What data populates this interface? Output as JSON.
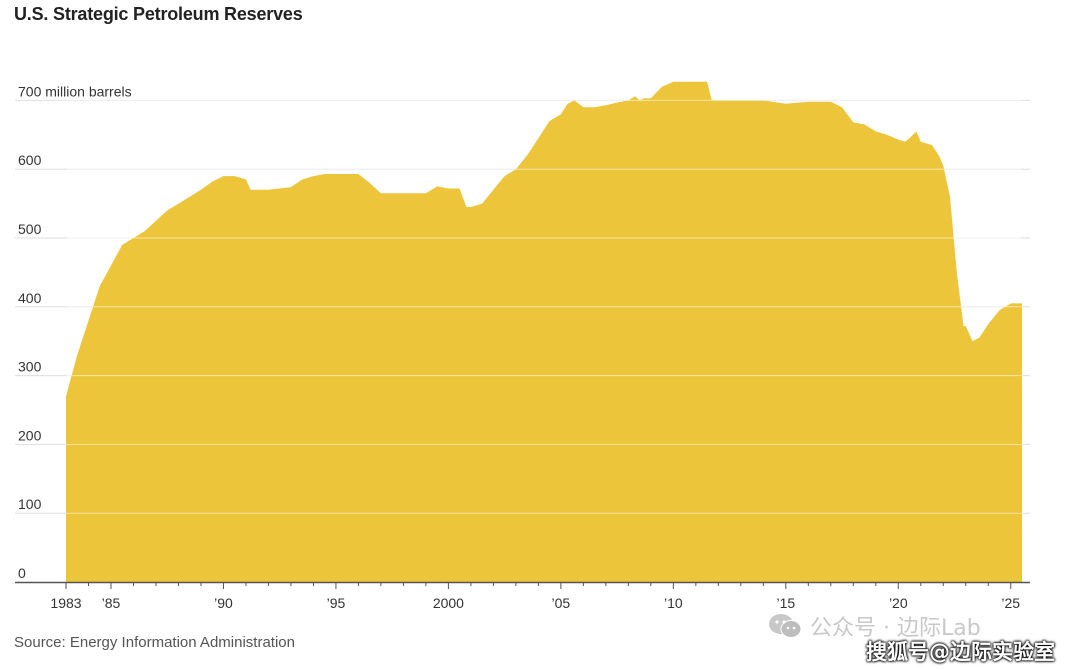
{
  "chart_data": {
    "type": "area",
    "title": "U.S. Strategic Petroleum Reserves",
    "ylabel": "",
    "y_unit_label": "700 million barrels",
    "ylim": [
      0,
      730
    ],
    "xlim": [
      1983,
      2025.5
    ],
    "yticks": [
      {
        "value": 0,
        "label": "0"
      },
      {
        "value": 100,
        "label": "100"
      },
      {
        "value": 200,
        "label": "200"
      },
      {
        "value": 300,
        "label": "300"
      },
      {
        "value": 400,
        "label": "400"
      },
      {
        "value": 500,
        "label": "500"
      },
      {
        "value": 600,
        "label": "600"
      },
      {
        "value": 700,
        "label": "700 million barrels"
      }
    ],
    "xticks": [
      {
        "value": 1983,
        "label": "1983"
      },
      {
        "value": 1985,
        "label": "’85"
      },
      {
        "value": 1990,
        "label": "’90"
      },
      {
        "value": 1995,
        "label": "’95"
      },
      {
        "value": 2000,
        "label": "2000"
      },
      {
        "value": 2005,
        "label": "’05"
      },
      {
        "value": 2010,
        "label": "’10"
      },
      {
        "value": 2015,
        "label": "’15"
      },
      {
        "value": 2020,
        "label": "’20"
      },
      {
        "value": 2025,
        "label": "’25"
      }
    ],
    "grid": true,
    "color": "#ecc53a",
    "series": [
      {
        "x": [
          1983.0,
          1983.5,
          1984.0,
          1984.5,
          1985.0,
          1985.5,
          1986.0,
          1986.5,
          1987.0,
          1987.5,
          1988.0,
          1988.5,
          1989.0,
          1989.5,
          1990.0,
          1990.5,
          1991.0,
          1991.2,
          1992.0,
          1993.0,
          1993.5,
          1994.0,
          1994.5,
          1995.0,
          1996.0,
          1996.5,
          1997.0,
          1998.0,
          1999.0,
          1999.5,
          2000.0,
          2000.5,
          2000.8,
          2001.0,
          2001.5,
          2002.0,
          2002.5,
          2003.0,
          2003.5,
          2004.0,
          2004.5,
          2005.0,
          2005.3,
          2005.6,
          2006.0,
          2006.5,
          2007.0,
          2007.5,
          2008.0,
          2008.3,
          2008.5,
          2008.7,
          2009.0,
          2009.5,
          2010.0,
          2010.5,
          2011.0,
          2011.5,
          2011.7,
          2012.0,
          2013.0,
          2014.0,
          2015.0,
          2016.0,
          2017.0,
          2017.5,
          2018.0,
          2018.5,
          2019.0,
          2019.5,
          2020.0,
          2020.3,
          2020.5,
          2020.8,
          2021.0,
          2021.5,
          2021.8,
          2022.0,
          2022.3,
          2022.6,
          2022.9,
          2023.0,
          2023.3,
          2023.6,
          2024.0,
          2024.5,
          2025.0,
          2025.5
        ],
        "y": [
          270,
          330,
          380,
          430,
          460,
          490,
          500,
          510,
          525,
          540,
          550,
          560,
          570,
          582,
          590,
          590,
          585,
          570,
          570,
          574,
          585,
          590,
          593,
          593,
          593,
          580,
          565,
          565,
          565,
          575,
          572,
          572,
          545,
          545,
          550,
          570,
          590,
          600,
          620,
          645,
          670,
          680,
          695,
          700,
          690,
          690,
          693,
          697,
          700,
          706,
          700,
          703,
          703,
          720,
          727,
          727,
          727,
          727,
          701,
          700,
          700,
          700,
          695,
          698,
          698,
          690,
          668,
          665,
          655,
          650,
          643,
          640,
          645,
          655,
          640,
          635,
          620,
          605,
          560,
          450,
          372,
          372,
          350,
          355,
          375,
          395,
          405,
          405
        ]
      }
    ],
    "source": "Source: Energy Information Administration"
  },
  "watermark": {
    "line1": "公众号 · 边际Lab",
    "line2": "搜狐号@边际实验室",
    "icon": "wechat-icon"
  }
}
